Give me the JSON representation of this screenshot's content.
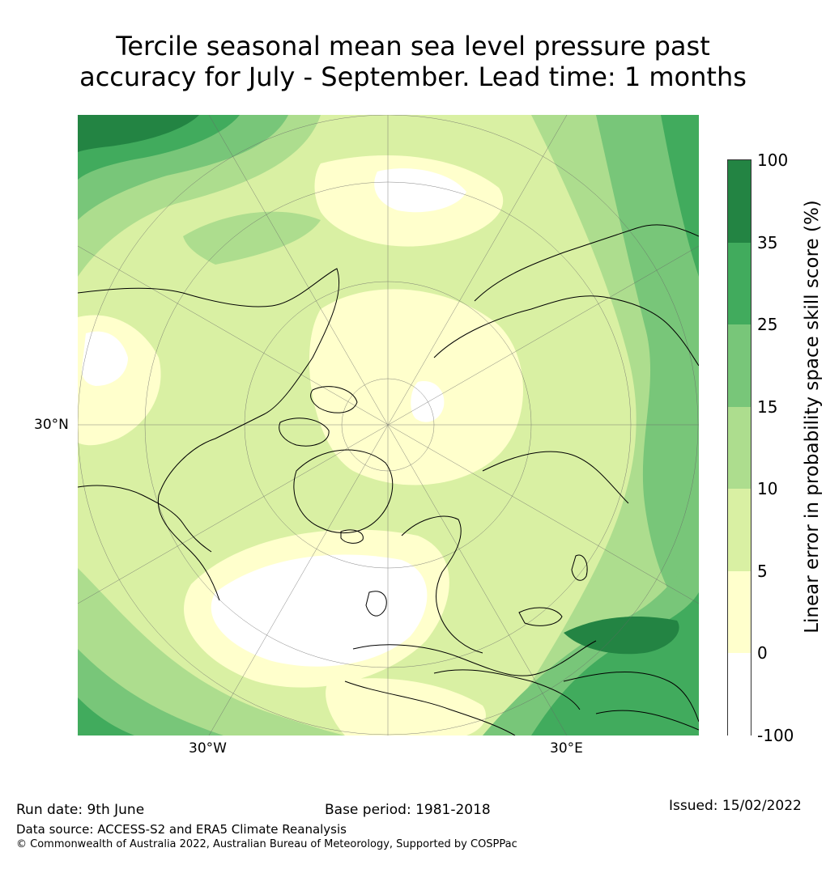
{
  "title": {
    "line1": "Tercile seasonal mean sea level pressure past",
    "line2": "accuracy for July - September. Lead time: 1 months"
  },
  "map": {
    "projection": "north-polar-stereographic",
    "labels": {
      "latitude": "30°N",
      "longitude_west": "30°W",
      "longitude_east": "30°E"
    }
  },
  "colorbar": {
    "label": "Linear error in probability space skill score (%)",
    "ticks": [
      "100",
      "35",
      "25",
      "15",
      "10",
      "5",
      "0",
      "-100"
    ],
    "colors": {
      "band_-100_0": "#ffffff",
      "band_0_5": "#ffffcc",
      "band_5_10": "#d9f0a3",
      "band_10_15": "#addd8e",
      "band_15_25": "#78c679",
      "band_25_35": "#41ab5d",
      "band_35_100": "#238443"
    }
  },
  "footer": {
    "run_date": "Run date: 9th June",
    "base_period": "Base period: 1981-2018",
    "issued": "Issued: 15/02/2022",
    "data_source": "Data source: ACCESS-S2 and ERA5 Climate Reanalysis",
    "copyright": "© Commonwealth of Australia 2022, Australian Bureau of Meteorology, Supported by COSPPac"
  }
}
